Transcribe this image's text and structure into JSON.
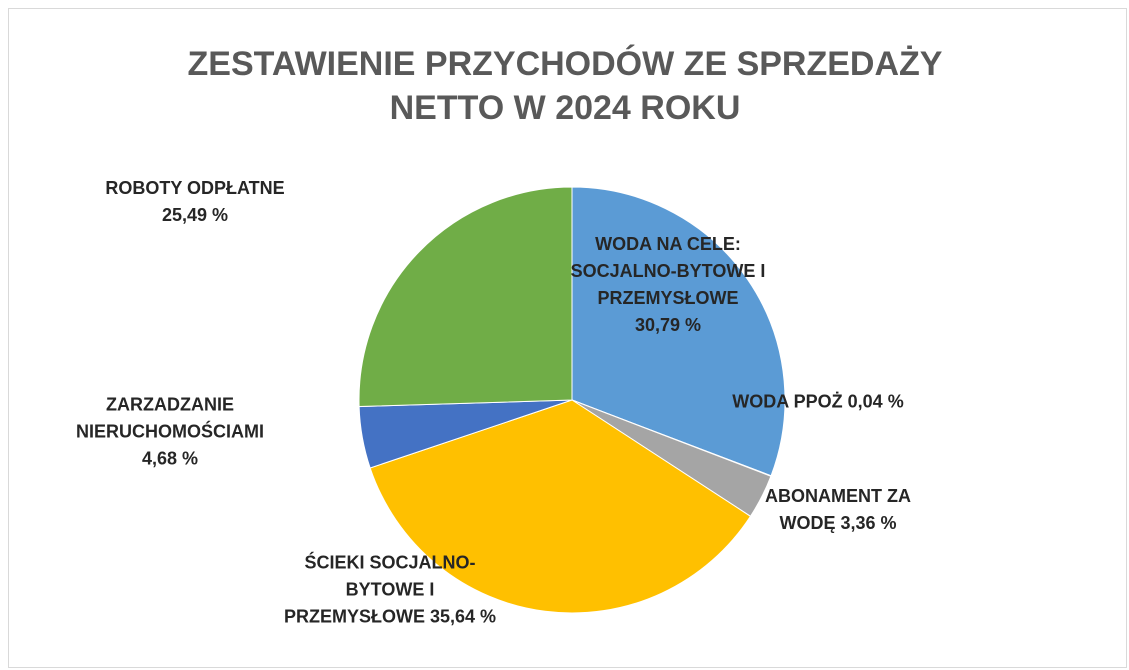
{
  "chart_data": {
    "type": "pie",
    "title": "ZESTAWIENIE PRZYCHODÓW ZE SPRZEDAŻY NETTO W 2024 ROKU",
    "categories": [
      "WODA NA CELE: SOCJALNO-BYTOWE I PRZEMYSŁOWE",
      "WODA PPOŻ",
      "ABONAMENT ZA WODĘ",
      "ŚCIEKI SOCJALNO-BYTOWE I PRZEMYSŁOWE",
      "ZARZADZANIE NIERUCHOMOŚCIAMI",
      "ROBOTY ODPŁATNE"
    ],
    "values": [
      30.79,
      0.04,
      3.36,
      35.64,
      4.68,
      25.49
    ],
    "value_labels": [
      "30,79 %",
      "0,04 %",
      "3,36 %",
      "35,64 %",
      "4,68 %",
      "25,49 %"
    ],
    "colors": [
      "#5b9bd5",
      "#ed7d31",
      "#a5a5a5",
      "#ffc000",
      "#4472c4",
      "#70ad47"
    ]
  }
}
